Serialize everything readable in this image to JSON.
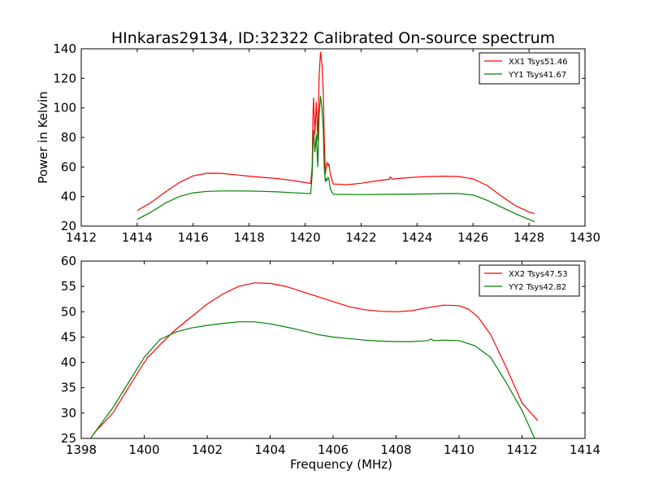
{
  "title": "HInkaras29134, ID:32322 Calibrated On-source spectrum",
  "colors": {
    "red": "#ff0000",
    "green": "#008000"
  },
  "chart_data": [
    {
      "type": "line",
      "ylabel": "Power in Kelvin",
      "xlabel": "",
      "xlim": [
        1412,
        1430
      ],
      "ylim": [
        20,
        140
      ],
      "xticks": [
        "1412",
        "1414",
        "1416",
        "1418",
        "1420",
        "1422",
        "1424",
        "1426",
        "1428",
        "1430"
      ],
      "yticks": [
        "20",
        "40",
        "60",
        "80",
        "100",
        "120",
        "140"
      ],
      "legend": "top-right",
      "series": [
        {
          "name": "XX1 Tsys51.46",
          "color": "#ff0000",
          "points": [
            [
              1414.0,
              30.5
            ],
            [
              1414.5,
              36
            ],
            [
              1415.0,
              43
            ],
            [
              1415.5,
              49.5
            ],
            [
              1416.0,
              54
            ],
            [
              1416.5,
              55.8
            ],
            [
              1417.0,
              55.7
            ],
            [
              1417.5,
              54.8
            ],
            [
              1418.0,
              53.8
            ],
            [
              1418.5,
              53
            ],
            [
              1419.0,
              52.2
            ],
            [
              1419.5,
              51
            ],
            [
              1420.0,
              49.5
            ],
            [
              1420.2,
              48.8
            ],
            [
              1420.25,
              60
            ],
            [
              1420.28,
              95
            ],
            [
              1420.3,
              107
            ],
            [
              1420.35,
              82
            ],
            [
              1420.4,
              104
            ],
            [
              1420.45,
              78
            ],
            [
              1420.5,
              122
            ],
            [
              1420.55,
              138
            ],
            [
              1420.6,
              130
            ],
            [
              1420.65,
              110
            ],
            [
              1420.68,
              82
            ],
            [
              1420.72,
              55
            ],
            [
              1420.75,
              60
            ],
            [
              1420.78,
              63
            ],
            [
              1420.82,
              61
            ],
            [
              1420.85,
              62
            ],
            [
              1420.9,
              55
            ],
            [
              1421.0,
              48.5
            ],
            [
              1421.5,
              48
            ],
            [
              1422.0,
              49
            ],
            [
              1422.5,
              50.5
            ],
            [
              1423.0,
              51.7
            ],
            [
              1423.05,
              53.3
            ],
            [
              1423.1,
              51.8
            ],
            [
              1423.5,
              52.5
            ],
            [
              1424.0,
              53.2
            ],
            [
              1424.5,
              53.6
            ],
            [
              1425.0,
              53.8
            ],
            [
              1425.5,
              53.5
            ],
            [
              1426.0,
              52
            ],
            [
              1426.5,
              47.5
            ],
            [
              1427.0,
              40.5
            ],
            [
              1427.5,
              34
            ],
            [
              1428.0,
              29.5
            ],
            [
              1428.2,
              28.5
            ]
          ]
        },
        {
          "name": "YY1 Tsys41.67",
          "color": "#008000",
          "points": [
            [
              1414.0,
              24.5
            ],
            [
              1414.5,
              29.5
            ],
            [
              1415.0,
              35.5
            ],
            [
              1415.5,
              40
            ],
            [
              1416.0,
              42.5
            ],
            [
              1416.5,
              43.5
            ],
            [
              1417.0,
              43.8
            ],
            [
              1417.5,
              43.8
            ],
            [
              1418.0,
              43.7
            ],
            [
              1418.5,
              43.5
            ],
            [
              1419.0,
              43.2
            ],
            [
              1419.5,
              42.7
            ],
            [
              1420.0,
              42.2
            ],
            [
              1420.2,
              42
            ],
            [
              1420.25,
              55
            ],
            [
              1420.28,
              75
            ],
            [
              1420.3,
              85
            ],
            [
              1420.35,
              70
            ],
            [
              1420.4,
              82
            ],
            [
              1420.45,
              60
            ],
            [
              1420.5,
              95
            ],
            [
              1420.55,
              108
            ],
            [
              1420.6,
              100
            ],
            [
              1420.65,
              85
            ],
            [
              1420.68,
              60
            ],
            [
              1420.72,
              50
            ],
            [
              1420.75,
              52
            ],
            [
              1420.78,
              51
            ],
            [
              1420.82,
              53
            ],
            [
              1420.85,
              52
            ],
            [
              1420.9,
              45
            ],
            [
              1421.0,
              41.5
            ],
            [
              1422.0,
              41.3
            ],
            [
              1423.0,
              41.5
            ],
            [
              1424.0,
              41.7
            ],
            [
              1425.0,
              42
            ],
            [
              1425.5,
              42
            ],
            [
              1426.0,
              41
            ],
            [
              1426.5,
              37.5
            ],
            [
              1427.0,
              33
            ],
            [
              1427.5,
              28.5
            ],
            [
              1428.0,
              24.5
            ],
            [
              1428.2,
              23
            ]
          ]
        }
      ]
    },
    {
      "type": "line",
      "ylabel": "",
      "xlabel": "Frequency (MHz)",
      "xlim": [
        1398,
        1414
      ],
      "ylim": [
        25,
        60
      ],
      "xticks": [
        "1398",
        "1400",
        "1402",
        "1404",
        "1406",
        "1408",
        "1410",
        "1412",
        "1414"
      ],
      "yticks": [
        "25",
        "30",
        "35",
        "40",
        "45",
        "50",
        "55",
        "60"
      ],
      "legend": "top-right",
      "series": [
        {
          "name": "XX2 Tsys47.53",
          "color": "#ff0000",
          "points": [
            [
              1398.4,
              26
            ],
            [
              1399.0,
              30
            ],
            [
              1399.5,
              35
            ],
            [
              1400.0,
              40
            ],
            [
              1400.05,
              40.3
            ],
            [
              1400.1,
              41
            ],
            [
              1400.2,
              41.5
            ],
            [
              1400.5,
              43.5
            ],
            [
              1401.0,
              46.5
            ],
            [
              1401.5,
              49
            ],
            [
              1402.0,
              51.5
            ],
            [
              1402.5,
              53.5
            ],
            [
              1403.0,
              55
            ],
            [
              1403.5,
              55.7
            ],
            [
              1404.0,
              55.6
            ],
            [
              1404.5,
              55
            ],
            [
              1405.0,
              54
            ],
            [
              1405.5,
              53
            ],
            [
              1406.0,
              52
            ],
            [
              1406.5,
              51
            ],
            [
              1407.0,
              50.4
            ],
            [
              1407.5,
              50.1
            ],
            [
              1408.0,
              50
            ],
            [
              1408.5,
              50.2
            ],
            [
              1409.0,
              50.8
            ],
            [
              1409.5,
              51.3
            ],
            [
              1410.0,
              51.2
            ],
            [
              1410.3,
              50.5
            ],
            [
              1410.6,
              49
            ],
            [
              1411.0,
              45.5
            ],
            [
              1411.5,
              39
            ],
            [
              1412.0,
              32
            ],
            [
              1412.5,
              28.5
            ]
          ]
        },
        {
          "name": "YY2 Tsys42.82",
          "color": "#008000",
          "points": [
            [
              1398.3,
              25
            ],
            [
              1398.7,
              28.5
            ],
            [
              1399.0,
              31
            ],
            [
              1399.5,
              36
            ],
            [
              1400.0,
              41
            ],
            [
              1400.5,
              44.5
            ],
            [
              1401.0,
              46
            ],
            [
              1401.5,
              46.8
            ],
            [
              1402.0,
              47.3
            ],
            [
              1402.5,
              47.7
            ],
            [
              1403.0,
              48
            ],
            [
              1403.5,
              48
            ],
            [
              1404.0,
              47.6
            ],
            [
              1404.5,
              47
            ],
            [
              1405.0,
              46.3
            ],
            [
              1405.5,
              45.5
            ],
            [
              1406.0,
              45
            ],
            [
              1406.5,
              44.7
            ],
            [
              1407.0,
              44.4
            ],
            [
              1407.5,
              44.2
            ],
            [
              1408.0,
              44.1
            ],
            [
              1408.5,
              44.1
            ],
            [
              1409.0,
              44.3
            ],
            [
              1409.1,
              44.6
            ],
            [
              1409.2,
              44.3
            ],
            [
              1409.5,
              44.4
            ],
            [
              1410.0,
              44.3
            ],
            [
              1410.5,
              43.3
            ],
            [
              1411.0,
              41
            ],
            [
              1411.5,
              36
            ],
            [
              1412.0,
              30.5
            ],
            [
              1412.4,
              25
            ]
          ]
        }
      ]
    }
  ]
}
